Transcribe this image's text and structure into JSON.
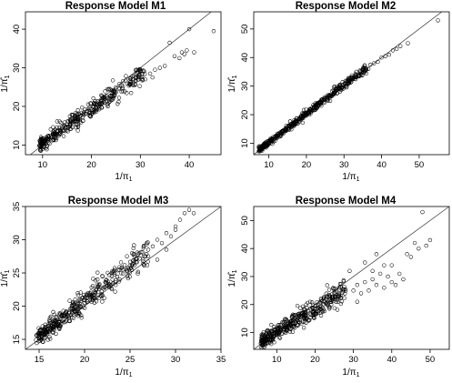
{
  "chart_data": [
    {
      "type": "scatter",
      "title": "Response Model M1",
      "xlabel": "1/π",
      "xlabel_sub": "1",
      "ylabel": "1/π̂",
      "ylabel_sub": "1",
      "xlim": [
        6.5,
        46.5
      ],
      "ylim": [
        7.5,
        44.5
      ],
      "xticks": [
        10,
        20,
        30,
        40
      ],
      "yticks": [
        10,
        20,
        30,
        40
      ],
      "reference_line": "y = x",
      "trend": {
        "x_min": 9.5,
        "x_max": 31,
        "slope": 0.88,
        "intercept": 1.8,
        "spread": 1.1,
        "n": 380
      },
      "outliers": [
        [
          32,
          28.5
        ],
        [
          33,
          29.5
        ],
        [
          34,
          30
        ],
        [
          35,
          30.5
        ],
        [
          36,
          36.5
        ],
        [
          37,
          33
        ],
        [
          38,
          32.5
        ],
        [
          38.5,
          34
        ],
        [
          39,
          33.5
        ],
        [
          39.5,
          34.5
        ],
        [
          40,
          40
        ],
        [
          41,
          34
        ],
        [
          45,
          39.5
        ],
        [
          31,
          27
        ],
        [
          32.5,
          27.5
        ],
        [
          30,
          29
        ],
        [
          29,
          27.5
        ]
      ]
    },
    {
      "type": "scatter",
      "title": "Response Model M2",
      "xlabel": "1/π",
      "xlabel_sub": "1",
      "ylabel": "1/π̂",
      "ylabel_sub": "1",
      "xlim": [
        6,
        58
      ],
      "ylim": [
        6,
        56
      ],
      "xticks": [
        10,
        20,
        30,
        40,
        50
      ],
      "yticks": [
        10,
        20,
        30,
        40,
        50
      ],
      "reference_line": "y = x",
      "trend": {
        "x_min": 7.5,
        "x_max": 36,
        "slope": 1.0,
        "intercept": 0.3,
        "spread": 0.6,
        "n": 480
      },
      "outliers": [
        [
          37,
          37.5
        ],
        [
          38,
          38
        ],
        [
          39,
          38.5
        ],
        [
          40,
          40
        ],
        [
          41,
          40.5
        ],
        [
          42,
          41
        ],
        [
          43,
          42.5
        ],
        [
          44,
          43
        ],
        [
          45,
          44
        ],
        [
          47,
          45
        ],
        [
          55,
          53
        ],
        [
          36.5,
          36
        ]
      ]
    },
    {
      "type": "scatter",
      "title": "Response Model M3",
      "xlabel": "1/π",
      "xlabel_sub": "1",
      "ylabel": "1/π̂",
      "ylabel_sub": "1",
      "xlim": [
        13.5,
        35
      ],
      "ylim": [
        13.5,
        35
      ],
      "xticks": [
        15,
        20,
        25,
        30,
        35
      ],
      "yticks": [
        15,
        20,
        25,
        30,
        35
      ],
      "reference_line": "y = x",
      "trend": {
        "x_min": 15,
        "x_max": 27,
        "slope": 1.05,
        "intercept": -0.3,
        "spread": 0.9,
        "n": 400
      },
      "outliers": [
        [
          27,
          28.5
        ],
        [
          27.5,
          29
        ],
        [
          28,
          30
        ],
        [
          28.5,
          29.5
        ],
        [
          29,
          31
        ],
        [
          29.5,
          30.5
        ],
        [
          30,
          32
        ],
        [
          30.5,
          33
        ],
        [
          31,
          34
        ],
        [
          31.5,
          34.5
        ],
        [
          28,
          27
        ],
        [
          27,
          27.5
        ],
        [
          26.5,
          29
        ],
        [
          29,
          28.5
        ],
        [
          30,
          31.5
        ],
        [
          32,
          34
        ],
        [
          26,
          28
        ],
        [
          25.5,
          27.5
        ]
      ]
    },
    {
      "type": "scatter",
      "title": "Response Model M4",
      "xlabel": "1/π",
      "xlabel_sub": "1",
      "ylabel": "1/π̂",
      "ylabel_sub": "1",
      "xlim": [
        4,
        55
      ],
      "ylim": [
        4,
        55
      ],
      "xticks": [
        10,
        20,
        30,
        40,
        50
      ],
      "yticks": [
        10,
        20,
        30,
        40,
        50
      ],
      "reference_line": "y = x",
      "trend": {
        "x_min": 6,
        "x_max": 28,
        "slope": 0.82,
        "intercept": 2.0,
        "spread": 1.8,
        "n": 420
      },
      "outliers": [
        [
          30,
          25
        ],
        [
          31,
          27
        ],
        [
          32,
          24
        ],
        [
          33,
          28
        ],
        [
          34,
          25
        ],
        [
          35,
          29
        ],
        [
          36,
          27
        ],
        [
          37,
          31
        ],
        [
          38,
          26
        ],
        [
          39,
          30
        ],
        [
          40,
          34
        ],
        [
          41,
          27
        ],
        [
          42,
          31
        ],
        [
          43,
          29
        ],
        [
          44,
          38
        ],
        [
          45,
          37
        ],
        [
          46,
          42
        ],
        [
          47,
          40
        ],
        [
          48,
          53
        ],
        [
          49,
          41
        ],
        [
          50,
          43
        ],
        [
          36,
          38
        ],
        [
          33,
          35
        ],
        [
          29,
          32
        ],
        [
          31,
          21
        ],
        [
          38,
          34
        ],
        [
          40,
          28
        ],
        [
          35,
          32
        ]
      ]
    }
  ]
}
